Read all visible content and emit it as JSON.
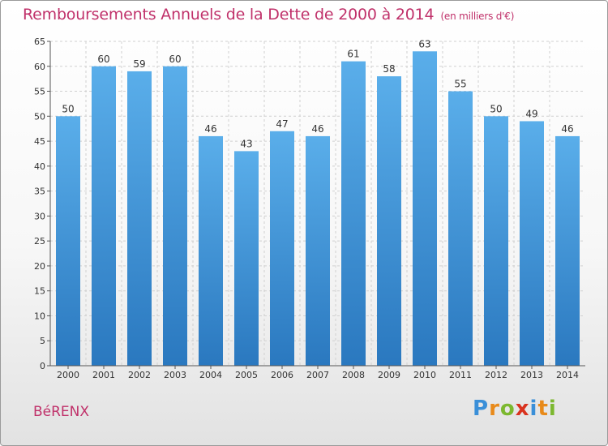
{
  "header": {
    "title": "Remboursements Annuels de la Dette de 2000 à 2014",
    "unit": "(en milliers d'€)"
  },
  "footer": {
    "commune": "BéRENX",
    "logo": [
      "P",
      "r",
      "o",
      "x",
      "i",
      "t",
      "i"
    ]
  },
  "colors": {
    "title": "#c0316a",
    "bar_top": "#5aaeea",
    "bar_bottom": "#2a78bf"
  },
  "chart_data": {
    "type": "bar",
    "title": "Remboursements Annuels de la Dette de 2000 à 2014",
    "xlabel": "",
    "ylabel": "",
    "categories": [
      "2000",
      "2001",
      "2002",
      "2003",
      "2004",
      "2005",
      "2006",
      "2007",
      "2008",
      "2009",
      "2010",
      "2011",
      "2012",
      "2013",
      "2014"
    ],
    "values": [
      50,
      60,
      59,
      60,
      46,
      43,
      47,
      46,
      61,
      58,
      63,
      55,
      50,
      49,
      46
    ],
    "ylim": [
      0,
      65
    ],
    "yticks": [
      0,
      5,
      10,
      15,
      20,
      25,
      30,
      35,
      40,
      45,
      50,
      55,
      60,
      65
    ],
    "grid": true
  }
}
